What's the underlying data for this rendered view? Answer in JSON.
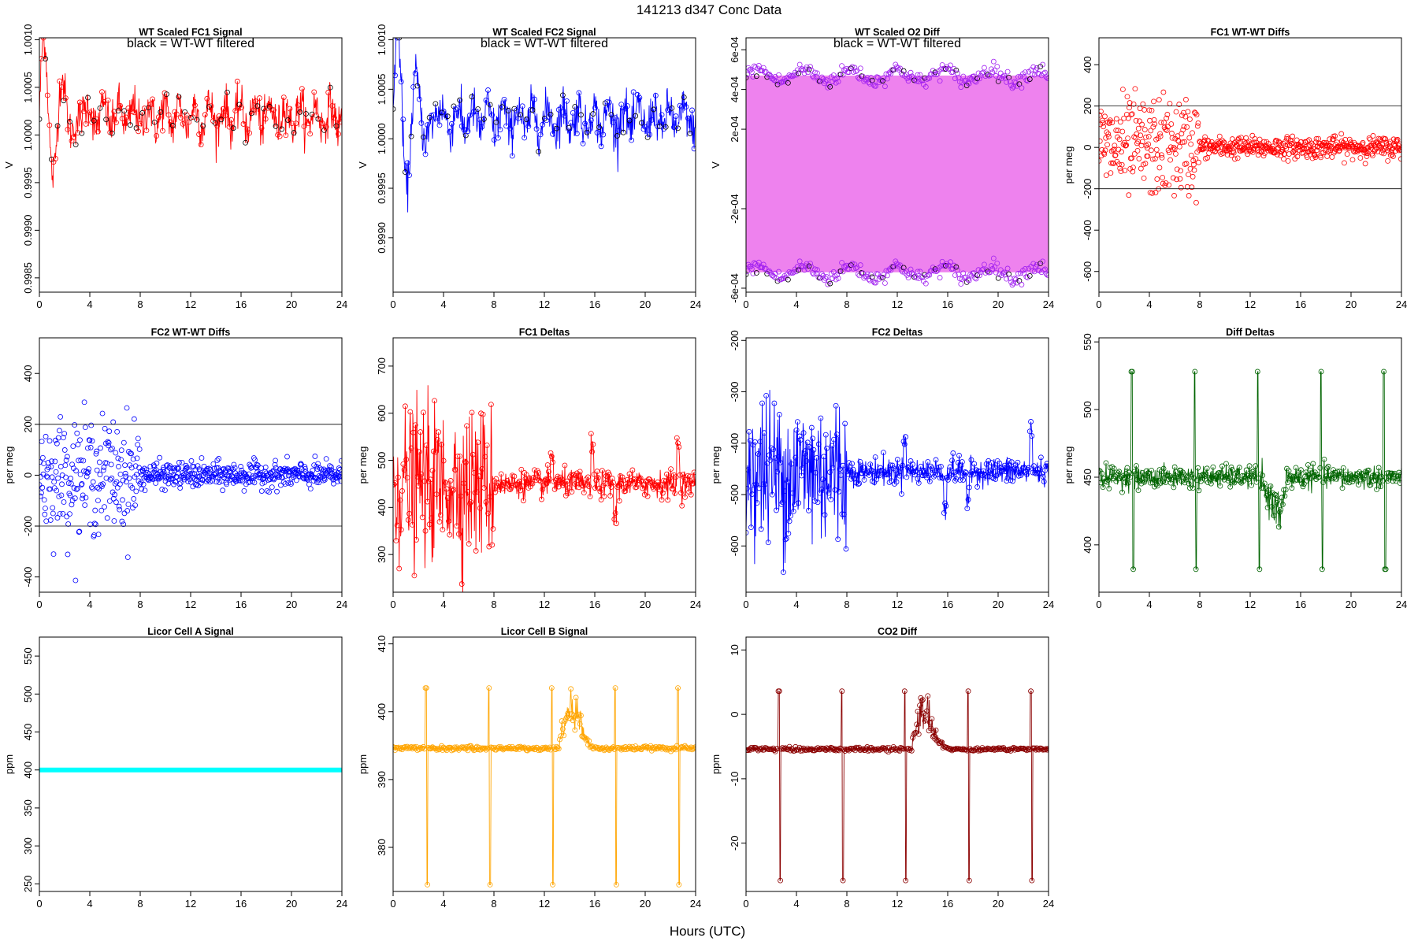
{
  "figure": {
    "title": "141213   d347   Conc Data",
    "xlabel": "Hours (UTC)"
  },
  "chart_data": [
    {
      "id": "fc1-signal",
      "type": "line",
      "title": "WT Scaled FC1 Signal",
      "annotation": "black = WT-WT filtered",
      "ylabel": "V",
      "xlabel": "",
      "color": "#ff0000",
      "overlay_color": "#000000",
      "xlim": [
        0,
        24
      ],
      "xticks": [
        0,
        4,
        8,
        12,
        16,
        20,
        24
      ],
      "ylim": [
        0.99835,
        1.00102
      ],
      "yticks": [
        0.9985,
        0.999,
        0.9995,
        1.0,
        1.0005,
        1.001
      ],
      "ytick_labels": [
        "0.9985",
        "0.9990",
        "0.9995",
        "1.0000",
        "1.0005",
        "1.0010"
      ],
      "gen": {
        "mode": "noisy",
        "base": 1.0002,
        "noise": 0.00022,
        "early_amp": 0.0008,
        "clip": [
          0.99885,
          1.00102
        ],
        "osc_period": 1.2,
        "osc_amp": 0.00012
      }
    },
    {
      "id": "fc2-signal",
      "type": "line",
      "title": "WT Scaled FC2 Signal",
      "annotation": "black = WT-WT filtered",
      "ylabel": "V",
      "xlabel": "",
      "color": "#0000ff",
      "overlay_color": "#000000",
      "xlim": [
        0,
        24
      ],
      "xticks": [
        0,
        4,
        8,
        12,
        16,
        20,
        24
      ],
      "ylim": [
        0.99845,
        1.00102
      ],
      "yticks": [
        0.999,
        0.9995,
        1.0,
        1.0005,
        1.001
      ],
      "ytick_labels": [
        "0.9990",
        "0.9995",
        "1.0000",
        "1.0005",
        "1.0010"
      ],
      "gen": {
        "mode": "noisy",
        "base": 1.0002,
        "noise": 0.00022,
        "early_amp": 0.0009,
        "clip": [
          0.99865,
          1.00102
        ],
        "osc_period": 1.2,
        "osc_amp": 0.00012
      }
    },
    {
      "id": "o2-diff",
      "type": "line",
      "title": "WT Scaled O2 Diff",
      "annotation": "black = WT-WT filtered",
      "ylabel": "V",
      "xlabel": "",
      "color": "#ee82ee",
      "point_color": "#a020f0",
      "overlay_color": "#000000",
      "xlim": [
        0,
        24
      ],
      "xticks": [
        0,
        4,
        8,
        12,
        16,
        20,
        24
      ],
      "ylim": [
        -0.00062,
        0.00066
      ],
      "yticks": [
        -0.0006,
        -0.0002,
        0.0002,
        0.0004,
        0.0006
      ],
      "ytick_labels": [
        "-6e-04",
        "-2e-04",
        "2e-04",
        "4e-04",
        "6e-04"
      ],
      "band": [
        -0.00052,
        0.00047
      ],
      "gen": {
        "mode": "band",
        "hi": 0.00047,
        "lo": -0.00052,
        "wobble": 3e-05
      }
    },
    {
      "id": "fc1-diffs",
      "type": "scatter",
      "title": "FC1 WT-WT Diffs",
      "ylabel": "per meg",
      "xlabel": "",
      "color": "#ff0000",
      "xlim": [
        0,
        24
      ],
      "xticks": [
        0,
        4,
        8,
        12,
        16,
        20,
        24
      ],
      "ylim": [
        -700,
        530
      ],
      "yticks": [
        -600,
        -400,
        -200,
        0,
        200,
        400
      ],
      "ytick_labels": [
        "-600",
        "-400",
        "-200",
        "0",
        "200",
        "400"
      ],
      "hlines": [
        200,
        -200
      ],
      "gen": {
        "mode": "scatter",
        "base": 0,
        "early_sd": 120,
        "late_sd": 25,
        "n": 620
      }
    },
    {
      "id": "fc2-diffs",
      "type": "scatter",
      "title": "FC2 WT-WT Diffs",
      "ylabel": "per meg",
      "xlabel": "",
      "color": "#0000ff",
      "xlim": [
        0,
        24
      ],
      "xticks": [
        0,
        4,
        8,
        12,
        16,
        20,
        24
      ],
      "ylim": [
        -460,
        540
      ],
      "yticks": [
        -400,
        -200,
        0,
        200,
        400
      ],
      "ytick_labels": [
        "-400",
        "-200",
        "0",
        "200",
        "400"
      ],
      "hlines": [
        200,
        -200
      ],
      "gen": {
        "mode": "scatter",
        "base": 0,
        "early_sd": 110,
        "late_sd": 25,
        "n": 620
      }
    },
    {
      "id": "fc1-deltas",
      "type": "line",
      "title": "FC1 Deltas",
      "ylabel": "per meg",
      "xlabel": "",
      "color": "#ff0000",
      "xlim": [
        0,
        24
      ],
      "xticks": [
        0,
        4,
        8,
        12,
        16,
        20,
        24
      ],
      "ylim": [
        220,
        760
      ],
      "yticks": [
        300,
        400,
        500,
        600,
        700
      ],
      "ytick_labels": [
        "300",
        "400",
        "500",
        "600",
        "700"
      ],
      "gen": {
        "mode": "deltas",
        "base": 450,
        "early_sd": 80,
        "late_sd": 14,
        "spike_hours": [
          12.6,
          15.8,
          17.6,
          22.6
        ],
        "spike_sizes": [
          60,
          70,
          -70,
          80
        ]
      }
    },
    {
      "id": "fc2-deltas",
      "type": "line",
      "title": "FC2 Deltas",
      "ylabel": "per meg",
      "xlabel": "",
      "color": "#0000ff",
      "xlim": [
        0,
        24
      ],
      "xticks": [
        0,
        4,
        8,
        12,
        16,
        20,
        24
      ],
      "ylim": [
        -690,
        -195
      ],
      "yticks": [
        -600,
        -500,
        -400,
        -300,
        -200
      ],
      "ytick_labels": [
        "-600",
        "-500",
        "-400",
        "-300",
        "-200"
      ],
      "gen": {
        "mode": "deltas",
        "base": -455,
        "early_sd": 75,
        "late_sd": 13,
        "spike_hours": [
          12.6,
          15.8,
          17.6,
          22.6
        ],
        "spike_sizes": [
          70,
          -70,
          -60,
          80
        ]
      }
    },
    {
      "id": "diff-deltas",
      "type": "line",
      "title": "Diff Deltas",
      "ylabel": "per meg",
      "xlabel": "",
      "color": "#006400",
      "xlim": [
        0,
        24
      ],
      "xticks": [
        0,
        4,
        8,
        12,
        16,
        20,
        24
      ],
      "ylim": [
        365,
        553
      ],
      "yticks": [
        400,
        450,
        500,
        550
      ],
      "ytick_labels": [
        "400",
        "450",
        "500",
        "550"
      ],
      "gen": {
        "mode": "diffdeltas",
        "base": 450,
        "sd": 4,
        "spike_hours": [
          2.6,
          7.6,
          12.6,
          17.6,
          22.6
        ],
        "spike_top": 528,
        "spike_bottom": 382
      }
    },
    {
      "id": "licor-a",
      "type": "line",
      "title": "Licor Cell A Signal",
      "ylabel": "ppm",
      "xlabel": "",
      "color": "#00ffff",
      "xlim": [
        0,
        24
      ],
      "xticks": [
        0,
        4,
        8,
        12,
        16,
        20,
        24
      ],
      "ylim": [
        240,
        575
      ],
      "yticks": [
        250,
        300,
        350,
        400,
        450,
        500,
        550
      ],
      "ytick_labels": [
        "250",
        "300",
        "350",
        "400",
        "450",
        "500",
        "550"
      ],
      "gen": {
        "mode": "flat",
        "value": 400
      }
    },
    {
      "id": "licor-b",
      "type": "line",
      "title": "Licor Cell B Signal",
      "ylabel": "ppm",
      "xlabel": "",
      "color": "#ffa500",
      "xlim": [
        0,
        24
      ],
      "xticks": [
        0,
        4,
        8,
        12,
        16,
        20,
        24
      ],
      "ylim": [
        373.5,
        411
      ],
      "yticks": [
        380,
        390,
        400,
        410
      ],
      "ytick_labels": [
        "380",
        "390",
        "400",
        "410"
      ],
      "gen": {
        "mode": "licor",
        "base": 394.6,
        "spike_hours": [
          2.6,
          7.6,
          12.6,
          17.6,
          22.6
        ],
        "spike_top": 403.5,
        "spike_bottom": 374.5,
        "bump_center": 14.2,
        "bump_amp": 6
      }
    },
    {
      "id": "co2-diff",
      "type": "line",
      "title": "CO2 Diff",
      "ylabel": "ppm",
      "xlabel": "",
      "color": "#8b0000",
      "xlim": [
        0,
        24
      ],
      "xticks": [
        0,
        4,
        8,
        12,
        16,
        20,
        24
      ],
      "ylim": [
        -27.5,
        12
      ],
      "yticks": [
        -20,
        -10,
        0,
        10
      ],
      "ytick_labels": [
        "-20",
        "-10",
        "0",
        "10"
      ],
      "gen": {
        "mode": "licor",
        "base": -5.4,
        "spike_hours": [
          2.6,
          7.6,
          12.6,
          17.6,
          22.6
        ],
        "spike_top": 3.6,
        "spike_bottom": -25.8,
        "bump_center": 14.2,
        "bump_amp": 6
      }
    }
  ]
}
